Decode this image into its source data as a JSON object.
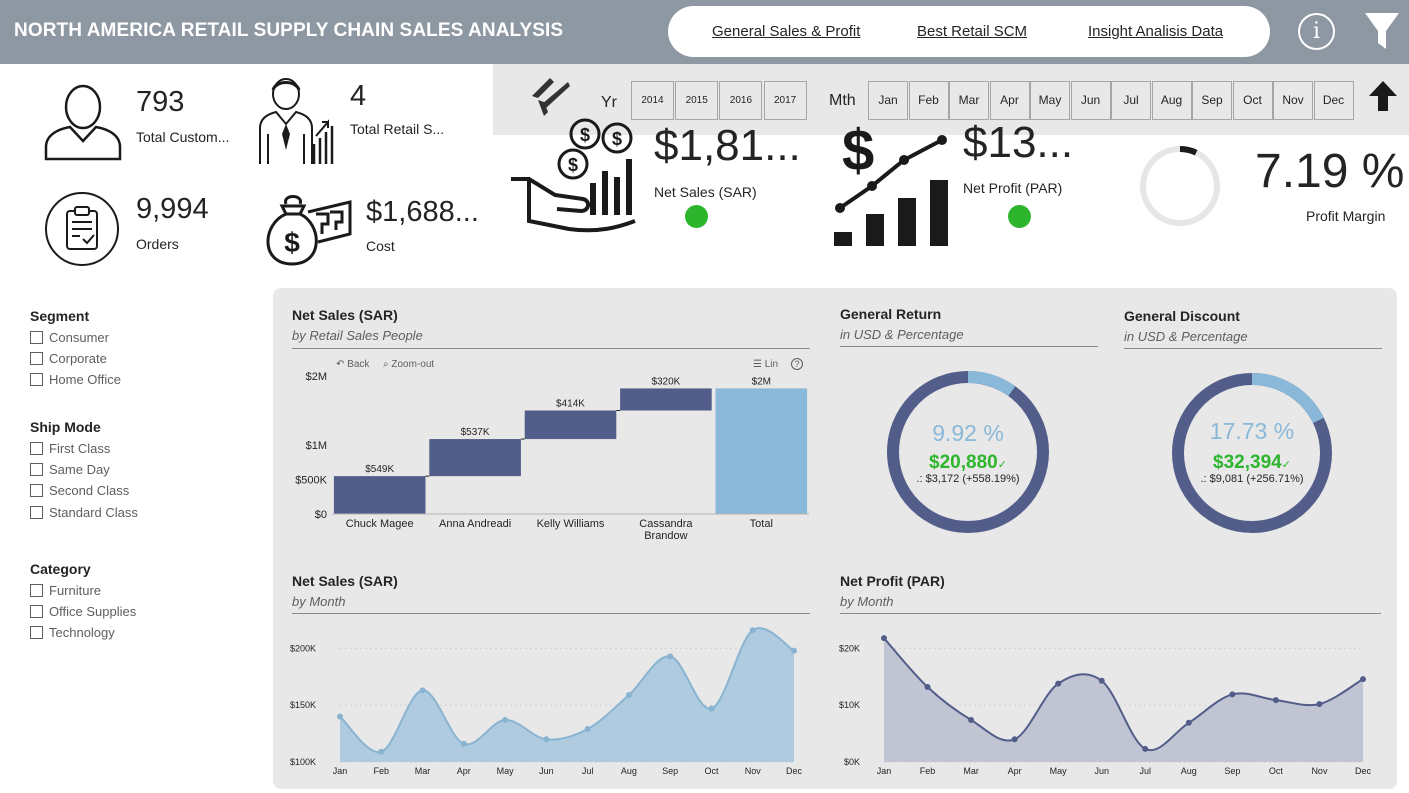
{
  "header": {
    "title": "NORTH AMERICA RETAIL SUPPLY CHAIN SALES ANALYSIS",
    "nav": [
      "General Sales & Profit",
      "Best Retail SCM",
      "Insight Analisis Data"
    ],
    "info_glyph": "i"
  },
  "slicers": {
    "year_label": "Yr",
    "years": [
      "2014",
      "2015",
      "2016",
      "2017"
    ],
    "month_label": "Mth",
    "months": [
      "Jan",
      "Feb",
      "Mar",
      "Apr",
      "May",
      "Jun",
      "Jul",
      "Aug",
      "Sep",
      "Oct",
      "Nov",
      "Dec"
    ]
  },
  "kpis": {
    "customers": {
      "value": "793",
      "label": "Total Custom..."
    },
    "retail_sales_people": {
      "value": "4",
      "label": "Total Retail S..."
    },
    "orders": {
      "value": "9,994",
      "label": "Orders"
    },
    "cost": {
      "value": "$1,688...",
      "label": "Cost"
    },
    "net_sales": {
      "value": "$1,81...",
      "label": "Net Sales (SAR)"
    },
    "net_profit": {
      "value": "$13...",
      "label": "Net Profit (PAR)"
    },
    "profit_margin": {
      "value": "7.19 %",
      "label": "Profit Margin",
      "fraction": 0.0719
    }
  },
  "filters": {
    "segment": {
      "title": "Segment",
      "items": [
        "Consumer",
        "Corporate",
        "Home Office"
      ]
    },
    "ship_mode": {
      "title": "Ship Mode",
      "items": [
        "First Class",
        "Same Day",
        "Second Class",
        "Standard Class"
      ]
    },
    "category": {
      "title": "Category",
      "items": [
        "Furniture",
        "Office Supplies",
        "Technology"
      ]
    }
  },
  "visuals": {
    "waterfall": {
      "title": "Net Sales (SAR)",
      "subtitle": "by Retail Sales People",
      "toolbar": {
        "back": "Back",
        "zoom_out": "Zoom-out",
        "lin": "Lin",
        "help": "?"
      }
    },
    "general_return": {
      "title": "General Return",
      "subtitle": "in USD & Percentage",
      "percent": "9.92 %",
      "value": "$20,880",
      "delta": ".: $3,172 (+558.19%)",
      "fraction": 0.0992
    },
    "general_discount": {
      "title": "General Discount",
      "subtitle": "in USD & Percentage",
      "percent": "17.73 %",
      "value": "$32,394",
      "delta": ".: $9,081 (+256.71%)",
      "fraction": 0.1773
    },
    "sales_month": {
      "title": "Net Sales (SAR)",
      "subtitle": "by Month"
    },
    "profit_month": {
      "title": "Net Profit (PAR)",
      "subtitle": "by Month"
    }
  },
  "colors": {
    "header_bg": "#8e98a3",
    "panel_bg": "#e8e8e8",
    "bar_dark": "#525d8a",
    "bar_light": "#8ab8d8",
    "ring_dark": "#525d8a",
    "ring_light": "#8ab8d8",
    "positive": "#2db52d",
    "area_sales_fill": "#aecbdf",
    "area_sales_line": "#88b4d2",
    "area_profit_fill": "#c0c4d3",
    "area_profit_line": "#525d8a"
  },
  "icons": [
    "person-icon",
    "salesman-icon",
    "clipboard-icon",
    "money-bag-icon",
    "hand-coins-icon",
    "profit-growth-icon",
    "info-icon",
    "funnel-icon",
    "eraser-icon",
    "arrow-up-icon"
  ],
  "chart_data": [
    {
      "type": "bar",
      "subtype": "waterfall",
      "categories": [
        "Chuck Magee",
        "Anna Andreadi",
        "Kelly Williams",
        "Cassandra Brandow",
        "Total"
      ],
      "values": [
        549000,
        537000,
        414000,
        320000,
        1820000
      ],
      "data_labels": [
        "$549K",
        "$537K",
        "$414K",
        "$320K",
        "$2M"
      ],
      "ytick_labels": [
        "$0",
        "$500K",
        "$1M",
        "$2M"
      ],
      "ytick_values": [
        0,
        500000,
        1000000,
        2000000
      ],
      "ylim": [
        0,
        2000000
      ]
    },
    {
      "type": "area",
      "x": [
        "Jan",
        "Feb",
        "Mar",
        "Apr",
        "May",
        "Jun",
        "Jul",
        "Aug",
        "Sep",
        "Oct",
        "Nov",
        "Dec"
      ],
      "values": [
        140000,
        109000,
        163000,
        116000,
        137000,
        120000,
        129000,
        159000,
        193000,
        147000,
        216000,
        198000
      ],
      "ytick_labels": [
        "$100K",
        "$150K",
        "$200K"
      ],
      "ytick_values": [
        100000,
        150000,
        200000
      ],
      "ylim": [
        100000,
        225000
      ]
    },
    {
      "type": "area",
      "x": [
        "Jan",
        "Feb",
        "Mar",
        "Apr",
        "May",
        "Jun",
        "Jul",
        "Aug",
        "Sep",
        "Oct",
        "Nov",
        "Dec"
      ],
      "values": [
        21800,
        13200,
        7400,
        4000,
        13800,
        14300,
        2300,
        6900,
        11900,
        10900,
        10200,
        14600
      ],
      "ytick_labels": [
        "$0K",
        "$10K",
        "$20K"
      ],
      "ytick_values": [
        0,
        10000,
        20000
      ],
      "ylim": [
        0,
        25000
      ]
    }
  ]
}
